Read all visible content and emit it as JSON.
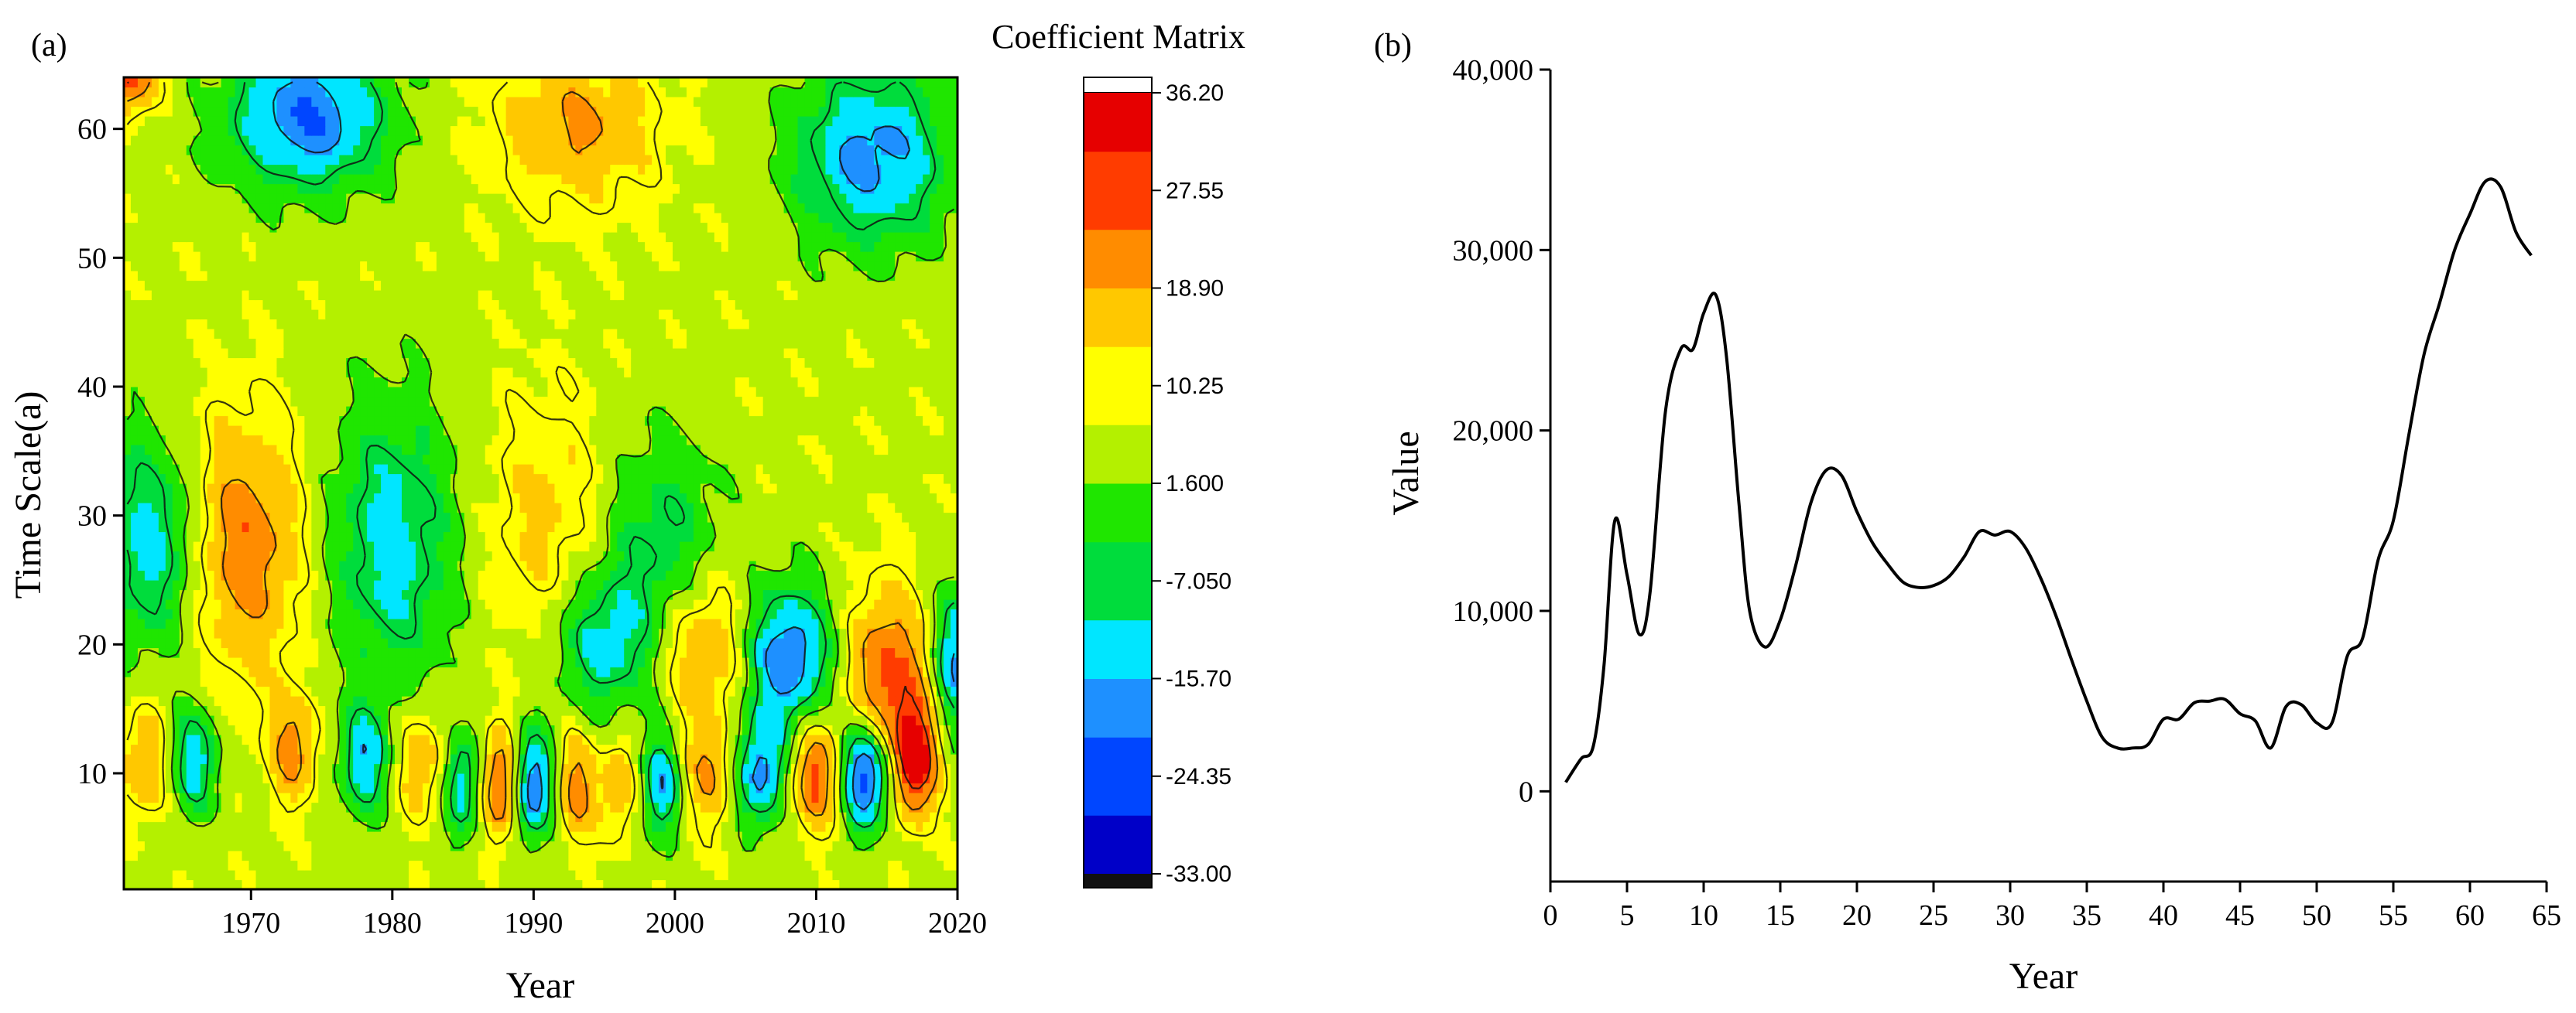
{
  "panel_a": {
    "label": "(a)",
    "colorbar_title": "Coefficient Matrix",
    "colorbar_labels": [
      "36.20",
      "27.55",
      "18.90",
      "10.25",
      "1.600",
      "-7.050",
      "-15.70",
      "-24.35",
      "-33.00"
    ],
    "colorbar_values": [
      36.2,
      27.55,
      18.9,
      10.25,
      1.6,
      -7.05,
      -15.7,
      -24.35,
      -33.0
    ],
    "colors": [
      "#0000c8",
      "#0046ff",
      "#1e90ff",
      "#00e6ff",
      "#00dc3c",
      "#1fe600",
      "#b4f000",
      "#ffff00",
      "#ffc800",
      "#ff8c00",
      "#ff3c00",
      "#e60000"
    ]
  },
  "panel_b": {
    "label": "(b)"
  },
  "chart_data": [
    {
      "type": "heatmap",
      "title": "Coefficient Matrix",
      "xlabel": "Year",
      "ylabel": "Time Scale(a)",
      "x_ticks": [
        "1970",
        "1980",
        "1990",
        "2000",
        "2010",
        "2020"
      ],
      "y_ticks": [
        "10",
        "20",
        "30",
        "40",
        "50",
        "60"
      ],
      "xlim": [
        1961,
        2020
      ],
      "ylim": [
        1,
        64
      ],
      "zlim": [
        -33.0,
        36.2
      ],
      "features": [
        {
          "year": 1969.5,
          "scale": 28,
          "value": 24,
          "sx": 3.0,
          "sy": 7
        },
        {
          "year": 1980,
          "scale": 28,
          "value": -13,
          "sx": 3.2,
          "sy": 8
        },
        {
          "year": 1991,
          "scale": 30,
          "value": 15,
          "sx": 3.2,
          "sy": 7
        },
        {
          "year": 1963,
          "scale": 28,
          "value": -14,
          "sx": 2.5,
          "sy": 6
        },
        {
          "year": 1999,
          "scale": 28,
          "value": -8,
          "sx": 3.0,
          "sy": 6
        },
        {
          "year": 1995,
          "scale": 20,
          "value": -12,
          "sx": 2.5,
          "sy": 4
        },
        {
          "year": 2002,
          "scale": 20,
          "value": 22,
          "sx": 2.4,
          "sy": 4
        },
        {
          "year": 2008,
          "scale": 19,
          "value": -22,
          "sx": 2.2,
          "sy": 4
        },
        {
          "year": 2015,
          "scale": 17,
          "value": 28,
          "sx": 2.0,
          "sy": 5
        },
        {
          "year": 2020,
          "scale": 19,
          "value": -18,
          "sx": 1.2,
          "sy": 4
        },
        {
          "year": 2017,
          "scale": 11,
          "value": 34,
          "sx": 1.1,
          "sy": 3
        },
        {
          "year": 2013.5,
          "scale": 10,
          "value": -30,
          "sx": 1.3,
          "sy": 3
        },
        {
          "year": 2010,
          "scale": 10,
          "value": 28,
          "sx": 1.3,
          "sy": 3
        },
        {
          "year": 2006,
          "scale": 10,
          "value": -18,
          "sx": 1.3,
          "sy": 3
        },
        {
          "year": 2002.5,
          "scale": 10,
          "value": 20,
          "sx": 1.3,
          "sy": 3
        },
        {
          "year": 1999,
          "scale": 9,
          "value": -15,
          "sx": 1.0,
          "sy": 3
        },
        {
          "year": 1996,
          "scale": 9,
          "value": 18,
          "sx": 1.0,
          "sy": 3
        },
        {
          "year": 1993,
          "scale": 9,
          "value": 22,
          "sx": 1.0,
          "sy": 3
        },
        {
          "year": 1990,
          "scale": 9,
          "value": -22,
          "sx": 1.0,
          "sy": 3
        },
        {
          "year": 1987.5,
          "scale": 9,
          "value": 28,
          "sx": 1.0,
          "sy": 3
        },
        {
          "year": 1985,
          "scale": 9,
          "value": -15,
          "sx": 1.0,
          "sy": 3
        },
        {
          "year": 1982,
          "scale": 11,
          "value": 20,
          "sx": 1.2,
          "sy": 3
        },
        {
          "year": 1978,
          "scale": 11,
          "value": -14,
          "sx": 1.2,
          "sy": 3
        },
        {
          "year": 1973,
          "scale": 12,
          "value": 22,
          "sx": 1.2,
          "sy": 3
        },
        {
          "year": 1966,
          "scale": 11,
          "value": -14,
          "sx": 1.2,
          "sy": 3
        },
        {
          "year": 1962.5,
          "scale": 11,
          "value": 20,
          "sx": 1.2,
          "sy": 3
        },
        {
          "year": 1974,
          "scale": 61,
          "value": -22,
          "sx": 4.0,
          "sy": 4
        },
        {
          "year": 1993,
          "scale": 60,
          "value": 20,
          "sx": 4.0,
          "sy": 4
        },
        {
          "year": 2014,
          "scale": 58,
          "value": -18,
          "sx": 4.0,
          "sy": 5
        },
        {
          "year": 1961,
          "scale": 64,
          "value": 30,
          "sx": 1.5,
          "sy": 2
        }
      ]
    },
    {
      "type": "line",
      "xlabel": "Year",
      "ylabel": "Value",
      "x_ticks": [
        "0",
        "5",
        "10",
        "15",
        "20",
        "25",
        "30",
        "35",
        "40",
        "45",
        "50",
        "55",
        "60",
        "65"
      ],
      "y_ticks": [
        "0",
        "10,000",
        "20,000",
        "30,000",
        "40,000"
      ],
      "xlim": [
        0,
        65
      ],
      "ylim": [
        -5000,
        40000
      ],
      "x": [
        1,
        2,
        2.8,
        3.5,
        4.2,
        5,
        5.8,
        6.5,
        7.5,
        8.5,
        9.3,
        10,
        10.8,
        11.5,
        12.3,
        13,
        14,
        15,
        16,
        17,
        18,
        19,
        20,
        21,
        22,
        23,
        24,
        25,
        26,
        27,
        28,
        29,
        30,
        31,
        32,
        33,
        34,
        35,
        36,
        37,
        38,
        39,
        40,
        41,
        42,
        43,
        44,
        45,
        46,
        47,
        48,
        49,
        50,
        51,
        52,
        53,
        54,
        55,
        56,
        57,
        58,
        59,
        60,
        61,
        62,
        63,
        64
      ],
      "values": [
        500,
        1800,
        2500,
        7000,
        15000,
        12000,
        8700,
        11000,
        21000,
        24500,
        24500,
        26500,
        27500,
        24000,
        16000,
        10000,
        8000,
        9500,
        12500,
        16000,
        17800,
        17500,
        15500,
        13800,
        12600,
        11600,
        11300,
        11400,
        11900,
        13000,
        14400,
        14200,
        14400,
        13500,
        11800,
        9700,
        7300,
        5000,
        3000,
        2400,
        2400,
        2600,
        4000,
        4000,
        4900,
        5000,
        5100,
        4300,
        3900,
        2400,
        4700,
        4800,
        3800,
        3800,
        7500,
        8500,
        12800,
        15000,
        19700,
        24200,
        27000,
        30000,
        32000,
        33800,
        33500,
        31000,
        29700
      ]
    }
  ]
}
